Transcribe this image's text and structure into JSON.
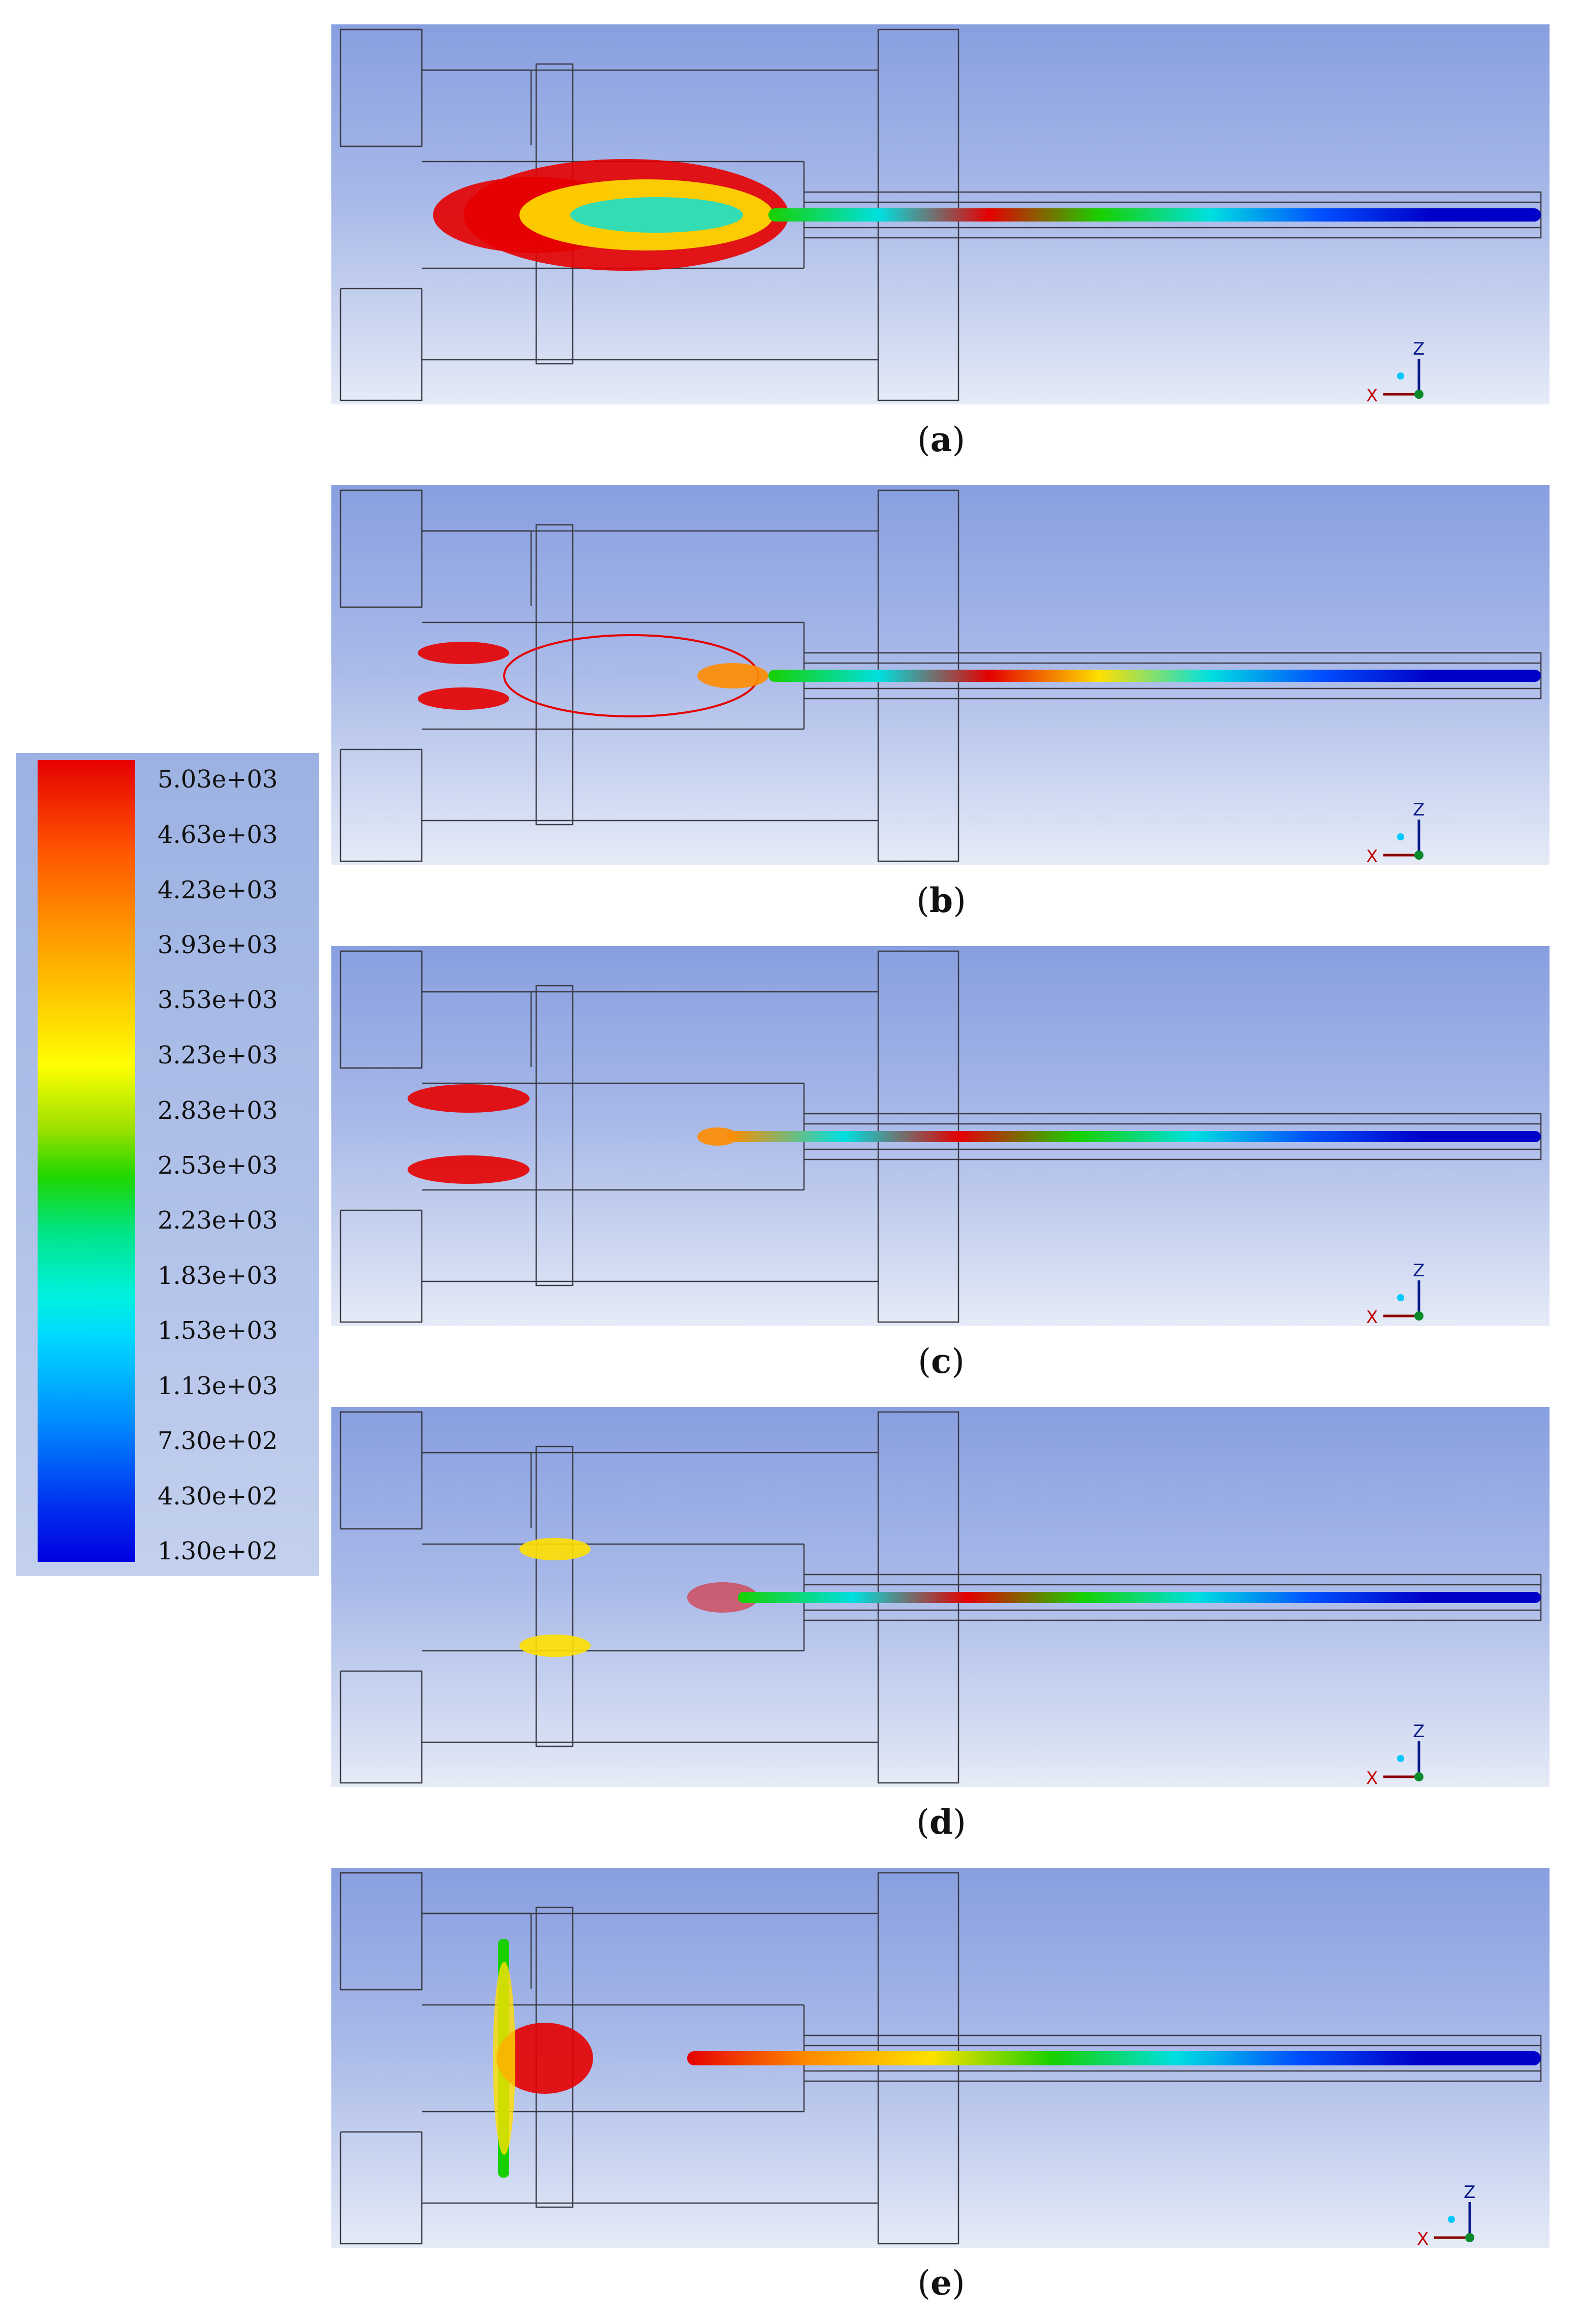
{
  "colorbar": {
    "labels": [
      "5.03e+03",
      "4.63e+03",
      "4.23e+03",
      "3.93e+03",
      "3.53e+03",
      "3.23e+03",
      "2.83e+03",
      "2.53e+03",
      "2.23e+03",
      "1.83e+03",
      "1.53e+03",
      "1.13e+03",
      "7.30e+02",
      "4.30e+02",
      "1.30e+02"
    ],
    "color_stops": [
      "#e50000",
      "#ff5a00",
      "#ff9b00",
      "#ffd800",
      "#ffff00",
      "#9be000",
      "#1ed700",
      "#00e58a",
      "#00f0e0",
      "#00d8ff",
      "#0090ff",
      "#0030f0",
      "#0000e0"
    ]
  },
  "panels": [
    {
      "letter": "a"
    },
    {
      "letter": "b"
    },
    {
      "letter": "c"
    },
    {
      "letter": "d"
    },
    {
      "letter": "e"
    }
  ],
  "axis_triad": {
    "x_label": "X",
    "z_label": "Z"
  },
  "colors": {
    "background_top": "#889fe0",
    "background_bottom": "#e6ebf7",
    "outline": "#3c3c46"
  }
}
